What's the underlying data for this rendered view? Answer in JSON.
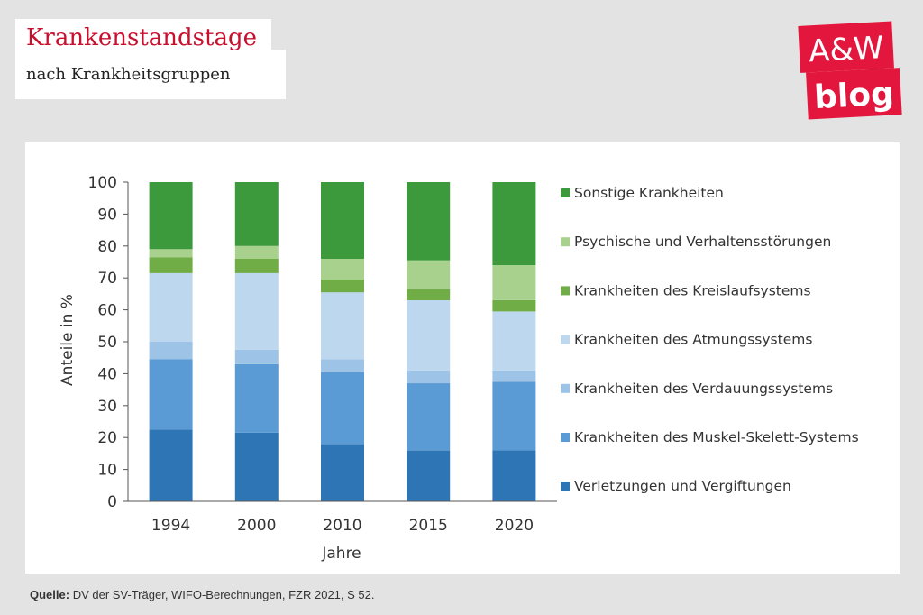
{
  "header": {
    "title": "Krankenstandstage",
    "subtitle": "nach Krankheitsgruppen"
  },
  "logo": {
    "top": "A&W",
    "bottom": "blog",
    "color": "#e3173e"
  },
  "source": {
    "label": "Quelle:",
    "text": "DV der SV-Träger, WIFO-Berechnungen, FZR 2021, S 52."
  },
  "chart_data": {
    "type": "bar",
    "stacked": true,
    "categories": [
      "1994",
      "2000",
      "2010",
      "2015",
      "2020"
    ],
    "xlabel": "Jahre",
    "ylabel": "Anteile in %",
    "ylim": [
      0,
      100
    ],
    "yticks": [
      "0",
      "10",
      "20",
      "30",
      "40",
      "50",
      "60",
      "70",
      "80",
      "90",
      "100"
    ],
    "grid": false,
    "legend_position": "right",
    "series": [
      {
        "name": "Verletzungen und Vergiftungen",
        "color": "#2e75b6",
        "values": [
          22.5,
          21.5,
          18.0,
          16.0,
          16.0
        ]
      },
      {
        "name": "Krankheiten des Muskel-Skelett-Systems",
        "color": "#5b9bd5",
        "values": [
          22.0,
          21.5,
          22.5,
          21.0,
          21.5
        ]
      },
      {
        "name": "Krankheiten des Verdauungssystems",
        "color": "#9dc3e6",
        "values": [
          5.5,
          4.5,
          4.0,
          4.0,
          3.5
        ]
      },
      {
        "name": "Krankheiten des Atmungssystems",
        "color": "#bdd7ee",
        "values": [
          21.5,
          24.0,
          21.0,
          22.0,
          18.5
        ]
      },
      {
        "name": "Krankheiten des Kreislaufsystems",
        "color": "#70ad47",
        "values": [
          5.0,
          4.5,
          4.0,
          3.5,
          3.5
        ]
      },
      {
        "name": "Psychische und Verhaltensstörungen",
        "color": "#a9d18e",
        "values": [
          2.5,
          4.0,
          6.5,
          9.0,
          11.0
        ]
      },
      {
        "name": "Sonstige Krankheiten",
        "color": "#3c9a3c",
        "values": [
          21.0,
          20.0,
          24.0,
          24.5,
          26.0
        ]
      }
    ]
  }
}
